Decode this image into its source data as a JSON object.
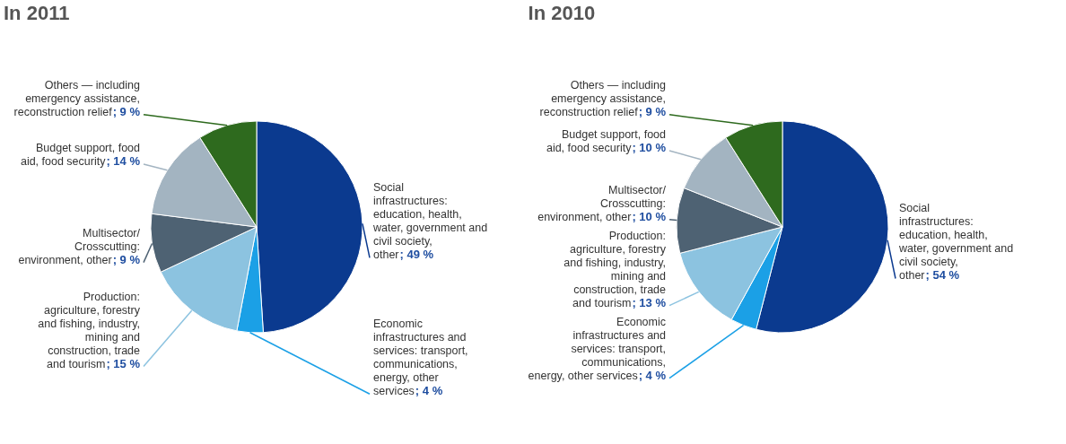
{
  "chart_data": [
    {
      "type": "pie",
      "title": "In 2011",
      "categories": [
        "Social infrastructures: education, health, water, government and civil society, other",
        "Economic infrastructures and services: transport, communications, energy, other services",
        "Production: agriculture, forestry and fishing, industry, mining and construction, trade and tourism",
        "Multisector/ Crosscutting: environment, other",
        "Budget support, food aid, food security",
        "Others — including emergency assistance, reconstruction relief"
      ],
      "values": [
        49,
        4,
        15,
        9,
        14,
        9
      ],
      "value_labels": [
        "; 49 %",
        "; 4 %",
        "; 15 %",
        "; 9 %",
        "; 14 %",
        "; 9 %"
      ],
      "colors": [
        "#0b3a8f",
        "#1ba0e6",
        "#8cc3e0",
        "#4e6273",
        "#a3b4c1",
        "#2e6a1e"
      ]
    },
    {
      "type": "pie",
      "title": "In 2010",
      "categories": [
        "Social infrastructures: education, health, water, government and civil society, other",
        "Economic infrastructures and services: transport, communications, energy, other services",
        "Production: agriculture, forestry and fishing, industry, mining and construction, trade and tourism",
        "Multisector/ Crosscutting: environment, other",
        "Budget support, food aid, food security",
        "Others — including emergency assistance, reconstruction relief"
      ],
      "values": [
        54,
        4,
        13,
        10,
        10,
        9
      ],
      "value_labels": [
        "; 54 %",
        "; 4 %",
        "; 13 %",
        "; 10 %",
        "; 10 %",
        "; 9 %"
      ],
      "colors": [
        "#0b3a8f",
        "#1ba0e6",
        "#8cc3e0",
        "#4e6273",
        "#a3b4c1",
        "#2e6a1e"
      ]
    }
  ]
}
